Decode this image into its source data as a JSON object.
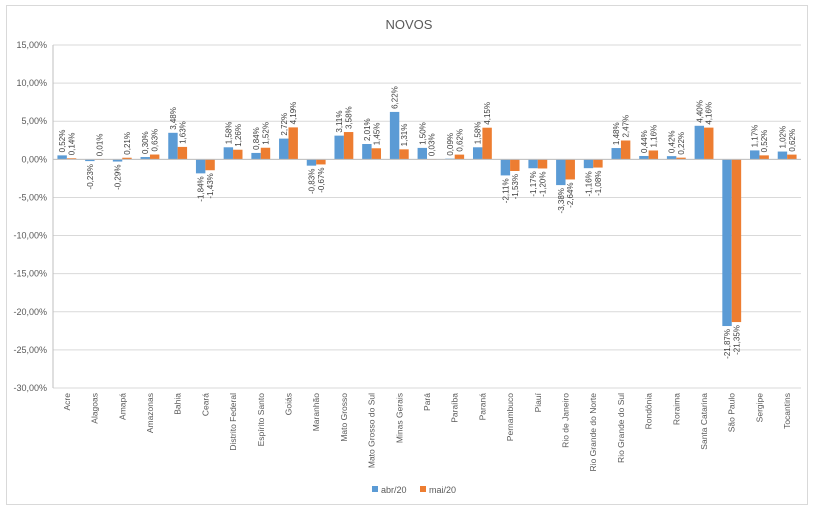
{
  "chart_data": {
    "type": "bar",
    "title": "NOVOS",
    "xlabel": "",
    "ylabel": "",
    "ylim": [
      -30,
      15
    ],
    "yticks": [
      15,
      10,
      5,
      0,
      -5,
      -10,
      -15,
      -20,
      -25,
      -30
    ],
    "ytick_labels": [
      "15,00%",
      "10,00%",
      "5,00%",
      "0,00%",
      "-5,00%",
      "-10,00%",
      "-15,00%",
      "-20,00%",
      "-25,00%",
      "-30,00%"
    ],
    "grid": true,
    "legend_position": "bottom",
    "categories": [
      "Acre",
      "Alagoas",
      "Amapá",
      "Amazonas",
      "Bahia",
      "Ceará",
      "Distrito Federal",
      "Espírito Santo",
      "Goiás",
      "Maranhão",
      "Mato Grosso",
      "Mato Grosso do Sul",
      "Minas Gerais",
      "Pará",
      "Paraíba",
      "Paraná",
      "Pernambuco",
      "Piauí",
      "Rio de Janeiro",
      "Rio Grande do Norte",
      "Rio Grande do Sul",
      "Rondônia",
      "Roraima",
      "Santa Catarina",
      "São Paulo",
      "Sergipe",
      "Tocantins"
    ],
    "series": [
      {
        "name": "abr/20",
        "color": "#5b9bd5",
        "values": [
          0.52,
          -0.23,
          -0.29,
          0.3,
          3.48,
          -1.84,
          1.58,
          0.84,
          2.72,
          -0.83,
          3.11,
          2.01,
          6.22,
          1.5,
          0.09,
          1.58,
          -2.11,
          -1.17,
          -3.38,
          -1.16,
          1.48,
          0.44,
          0.42,
          4.4,
          -21.87,
          1.17,
          1.02
        ],
        "labels": [
          "0,52%",
          "-0,23%",
          "-0,29%",
          "0,30%",
          "3,48%",
          "-1,84%",
          "1,58%",
          "0,84%",
          "2,72%",
          "-0,83%",
          "3,11%",
          "2,01%",
          "6,22%",
          "1,50%",
          "0,09%",
          "1,58%",
          "-2,11%",
          "-1,17%",
          "-3,38%",
          "-1,16%",
          "1,48%",
          "0,44%",
          "0,42%",
          "4,40%",
          "-21,87%",
          "1,17%",
          "1,02%"
        ]
      },
      {
        "name": "mai/20",
        "color": "#ed7d31",
        "values": [
          0.14,
          0.01,
          0.21,
          0.63,
          1.63,
          -1.43,
          1.26,
          1.52,
          4.19,
          -0.67,
          3.58,
          1.45,
          1.31,
          0.03,
          0.62,
          4.15,
          -1.53,
          -1.2,
          -2.64,
          -1.08,
          2.47,
          1.16,
          0.22,
          4.16,
          -21.35,
          0.52,
          0.62
        ],
        "labels": [
          "0,14%",
          "0,01%",
          "0,21%",
          "0,63%",
          "1,63%",
          "-1,43%",
          "1,26%",
          "1,52%",
          "4,19%",
          "-0,67%",
          "3,58%",
          "1,45%",
          "1,31%",
          "0,03%",
          "0,62%",
          "4,15%",
          "-1,53%",
          "-1,20%",
          "-2,64%",
          "-1,08%",
          "2,47%",
          "1,16%",
          "0,22%",
          "4,16%",
          "-21,35%",
          "0,52%",
          "0,62%"
        ]
      }
    ]
  }
}
